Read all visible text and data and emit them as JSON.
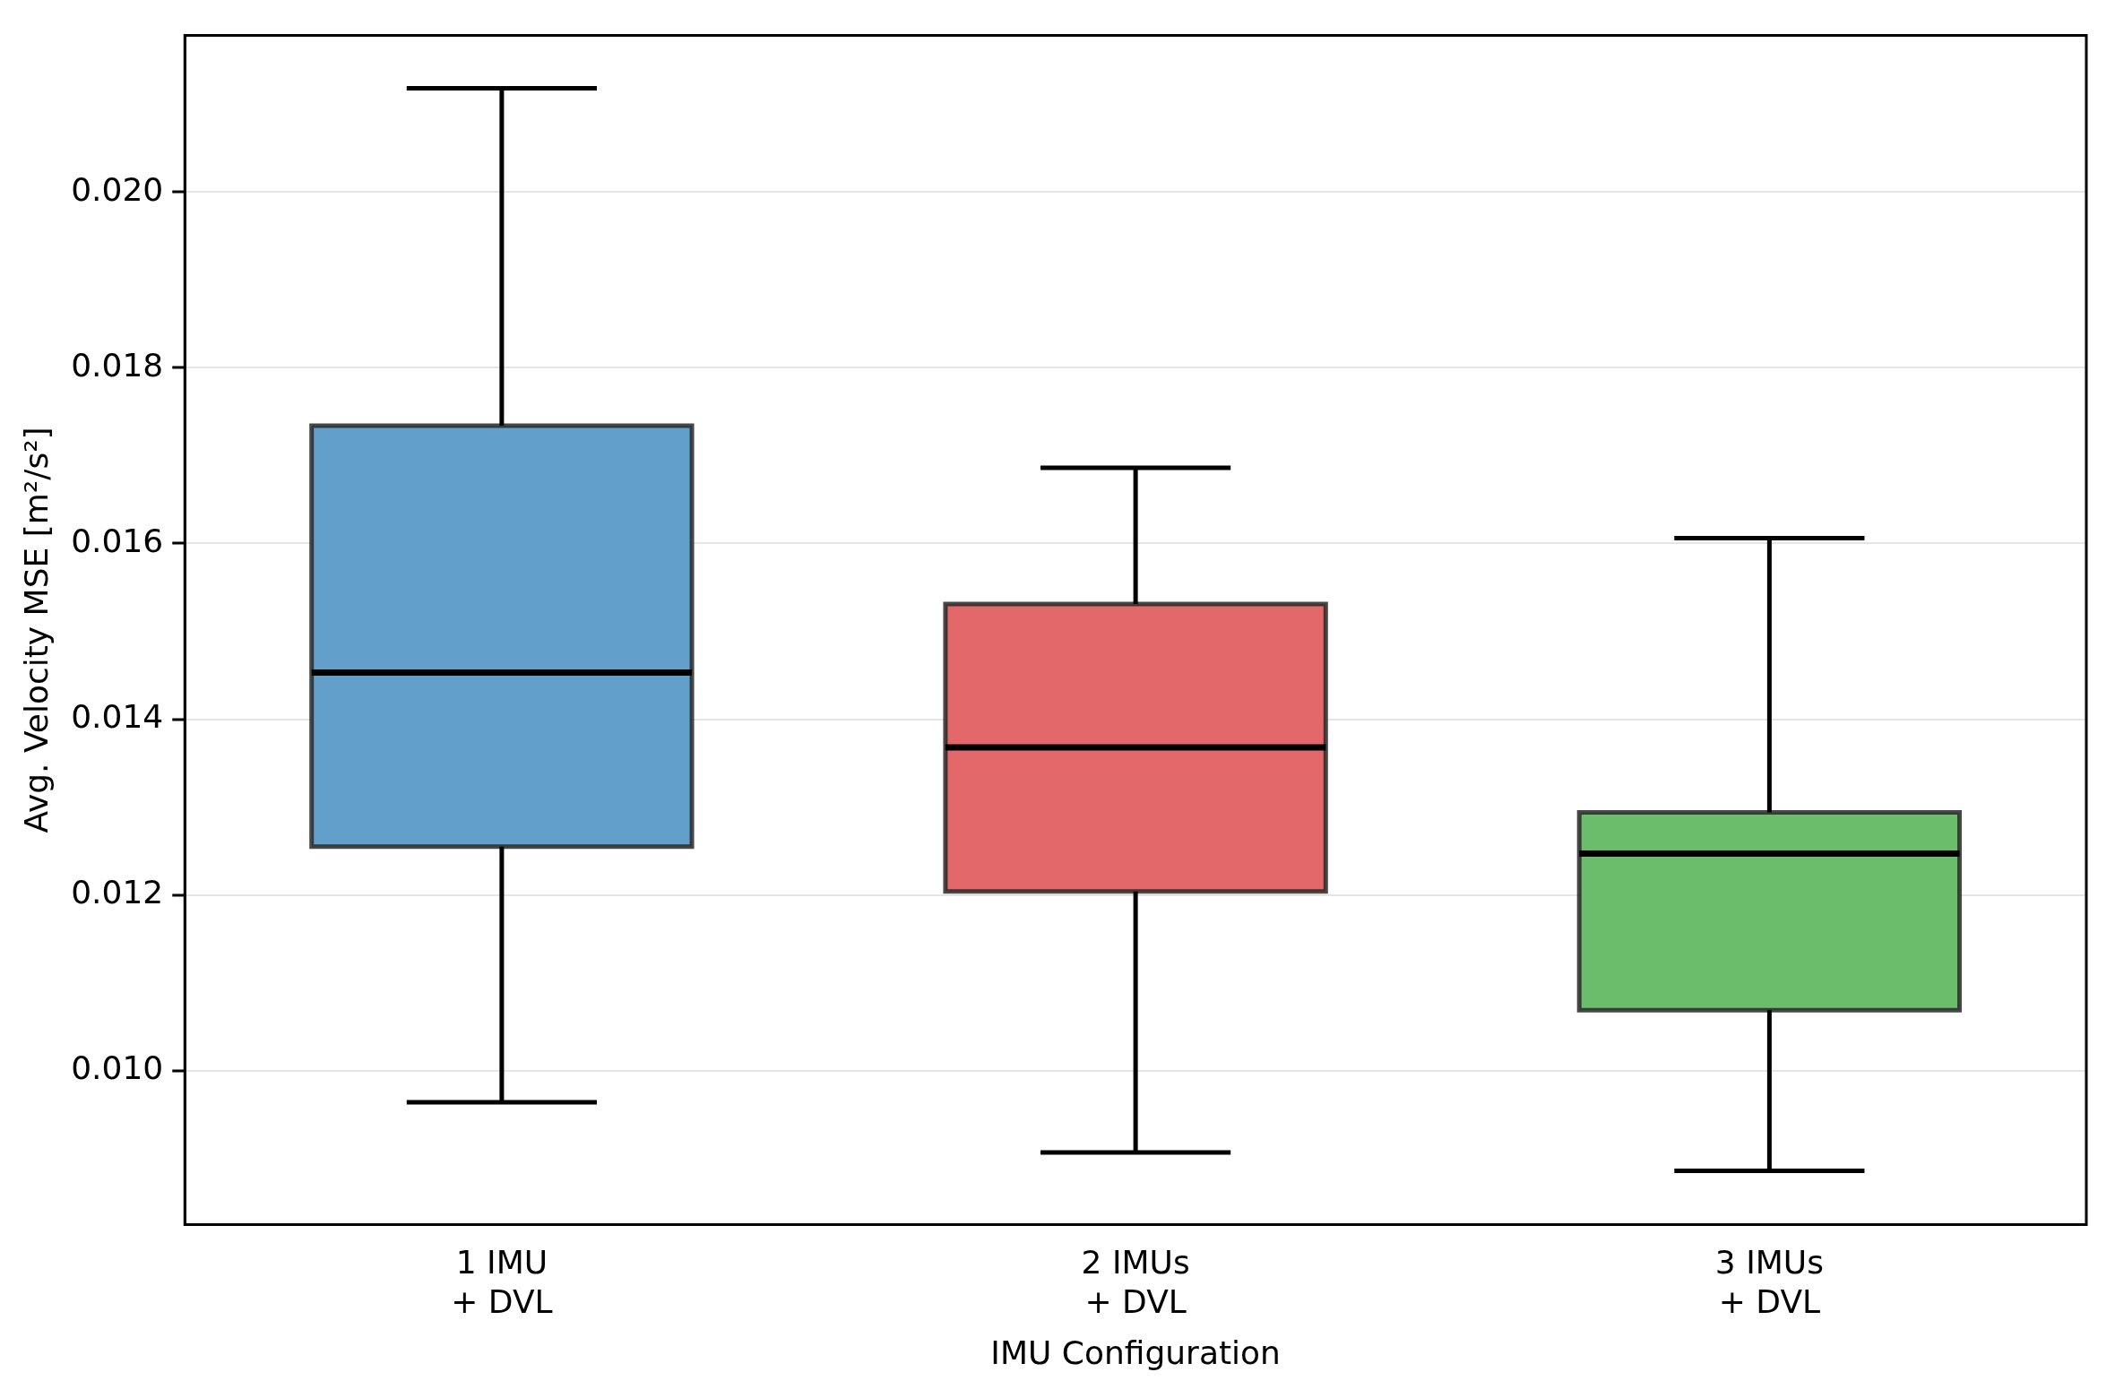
{
  "chart_data": {
    "type": "box",
    "xlabel": "IMU Configuration",
    "ylabel": "Avg. Velocity MSE [m²/s²]",
    "categories": [
      "1 IMU\n+ DVL",
      "2 IMUs\n+ DVL",
      "3 IMUs\n+ DVL"
    ],
    "colors": [
      "#62a0cb",
      "#e2686a",
      "#6bbd6b"
    ],
    "boxes": [
      {
        "low": 0.00964,
        "q1": 0.01255,
        "median": 0.01453,
        "q3": 0.01734,
        "high": 0.02118
      },
      {
        "low": 0.00907,
        "q1": 0.01204,
        "median": 0.01368,
        "q3": 0.01531,
        "high": 0.01686
      },
      {
        "low": 0.00886,
        "q1": 0.01069,
        "median": 0.01247,
        "q3": 0.01294,
        "high": 0.01606
      }
    ],
    "ylim": [
      0.00825,
      0.02178
    ],
    "yticks": [
      {
        "value": 0.01,
        "label": "0.010"
      },
      {
        "value": 0.012,
        "label": "0.012"
      },
      {
        "value": 0.014,
        "label": "0.014"
      },
      {
        "value": 0.016,
        "label": "0.016"
      },
      {
        "value": 0.018,
        "label": "0.018"
      },
      {
        "value": 0.02,
        "label": "0.020"
      }
    ],
    "grid": "y",
    "legend": false
  }
}
